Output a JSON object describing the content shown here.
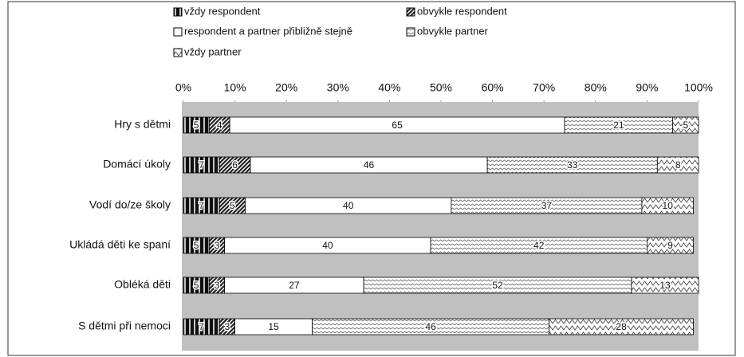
{
  "chart_data": {
    "type": "stacked-bar-horizontal",
    "categories": [
      "Hry s dětmi",
      "Domácí úkoly",
      "Vodí do/ze školy",
      "Ukládá děti ke spaní",
      "Obléká děti",
      "S dětmi při nemoci"
    ],
    "series": [
      {
        "name": "vždy respondent",
        "color": "#111111",
        "values": [
          5,
          7,
          7,
          5,
          5,
          7
        ]
      },
      {
        "name": "obvykle respondent",
        "color": "#222222",
        "values": [
          4,
          6,
          5,
          3,
          3,
          3
        ]
      },
      {
        "name": "respondent a partner přibližně stejně",
        "color": "#ffffff",
        "values": [
          65,
          46,
          40,
          40,
          27,
          15
        ]
      },
      {
        "name": "obvykle partner",
        "color": "#555555",
        "values": [
          21,
          33,
          37,
          42,
          52,
          46
        ]
      },
      {
        "name": "vždy partner",
        "color": "#444444",
        "values": [
          5,
          8,
          10,
          9,
          13,
          28
        ]
      }
    ],
    "xlim": [
      0,
      100
    ],
    "xticks": [
      {
        "value": 0,
        "label": "0%"
      },
      {
        "value": 10,
        "label": "10%"
      },
      {
        "value": 20,
        "label": "20%"
      },
      {
        "value": 30,
        "label": "30%"
      },
      {
        "value": 40,
        "label": "40%"
      },
      {
        "value": 50,
        "label": "50%"
      },
      {
        "value": 60,
        "label": "60%"
      },
      {
        "value": 70,
        "label": "70%"
      },
      {
        "value": 80,
        "label": "80%"
      },
      {
        "value": 90,
        "label": "90%"
      },
      {
        "value": 100,
        "label": "100%"
      }
    ]
  }
}
